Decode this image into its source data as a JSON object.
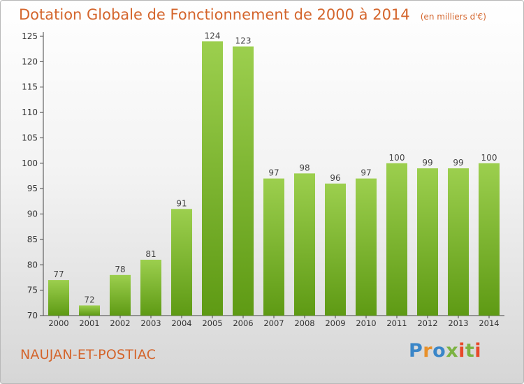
{
  "title": "Dotation Globale de Fonctionnement de 2000 à 2014",
  "unit": "(en milliers d'€)",
  "commune": "NAUJAN-ET-POSTIAC",
  "logo": "Proxiti",
  "colors": {
    "accent": "#d4652c",
    "bar_top": "#9ccf4e",
    "bar_bottom": "#5e9a14"
  },
  "chart_data": {
    "type": "bar",
    "title": "Dotation Globale de Fonctionnement de 2000 à 2014",
    "subtitle": "(en milliers d'€)",
    "categories": [
      "2000",
      "2001",
      "2002",
      "2003",
      "2004",
      "2005",
      "2006",
      "2007",
      "2008",
      "2009",
      "2010",
      "2011",
      "2012",
      "2013",
      "2014"
    ],
    "values": [
      77,
      72,
      78,
      81,
      91,
      124,
      123,
      97,
      98,
      96,
      97,
      100,
      99,
      99,
      100
    ],
    "ylim": [
      70,
      125
    ],
    "yticks": [
      70,
      75,
      80,
      85,
      90,
      95,
      100,
      105,
      110,
      115,
      120,
      125
    ],
    "grid": false,
    "data_labels": true
  }
}
